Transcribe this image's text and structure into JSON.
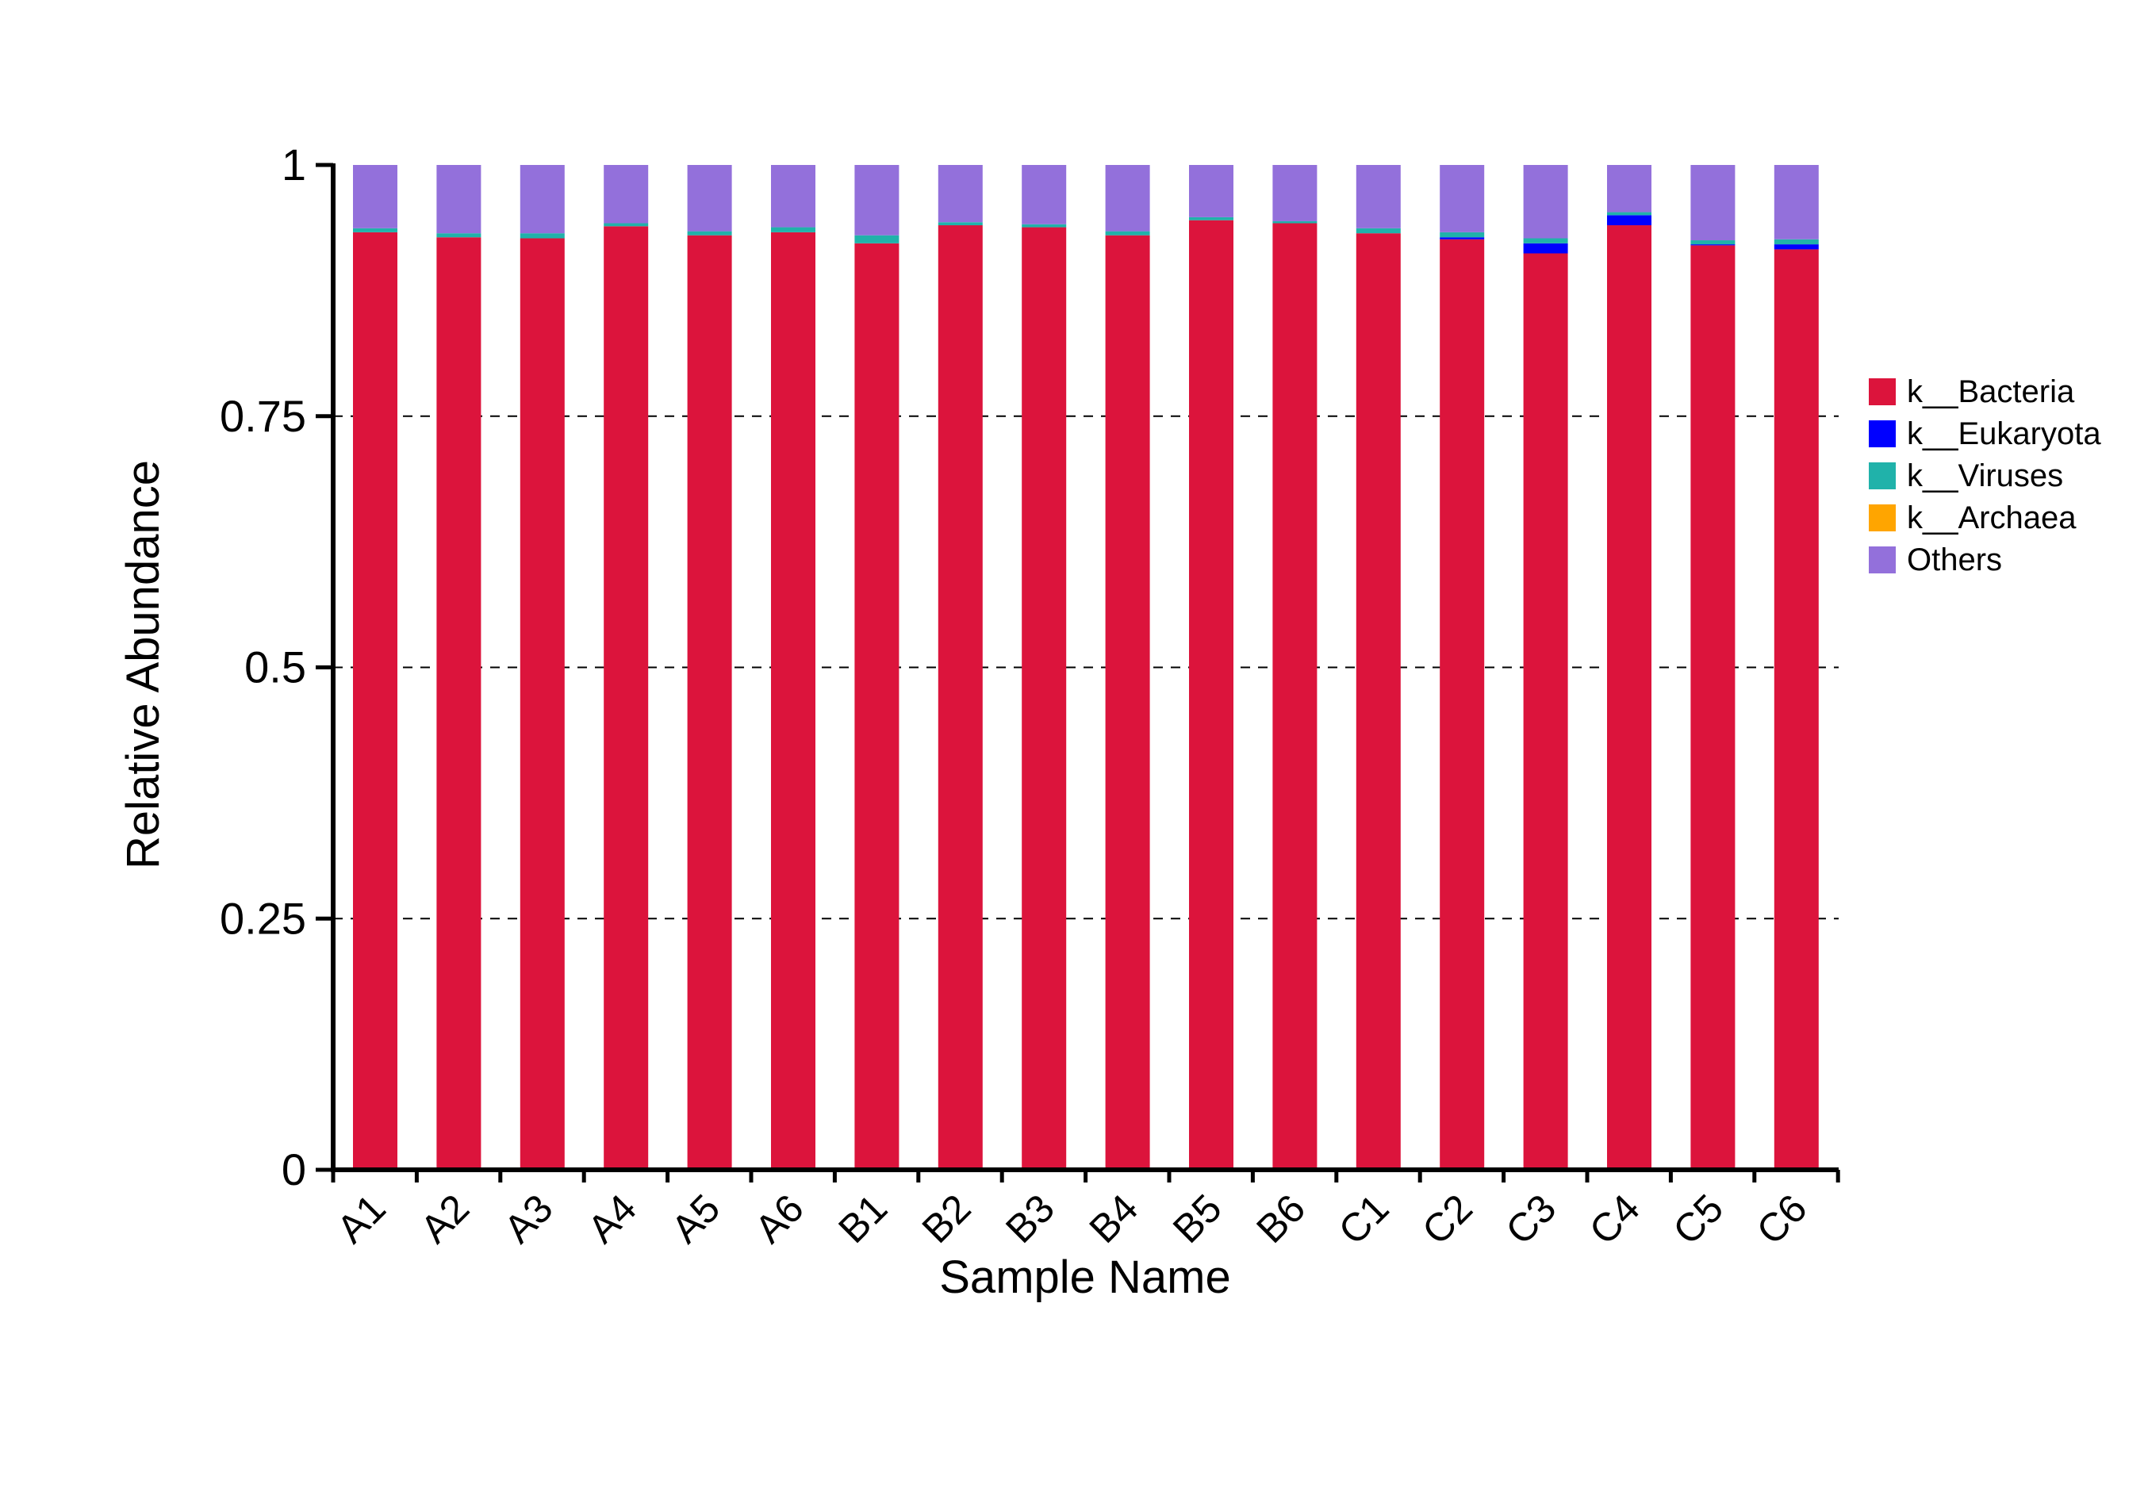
{
  "colors": {
    "k__Bacteria": "#DC143C",
    "k__Eukaryota": "#0000FF",
    "k__Viruses": "#20B2AA",
    "k__Archaea": "#FFA500",
    "Others": "#9370DB",
    "axis": "#000000",
    "grid": "#000000"
  },
  "chart_data": {
    "type": "bar",
    "stacked": true,
    "title": "",
    "xlabel": "Sample Name",
    "ylabel": "Relative Abundance",
    "ylim": [
      0,
      1
    ],
    "yticks": [
      0,
      0.25,
      0.5,
      0.75,
      1
    ],
    "ytick_labels": [
      "0",
      "0.25",
      "0.5",
      "0.75",
      "1"
    ],
    "grid": "horizontal dashed at 0.25, 0.5, 0.75",
    "legend_position": "right",
    "categories": [
      "A1",
      "A2",
      "A3",
      "A4",
      "A5",
      "A6",
      "B1",
      "B2",
      "B3",
      "B4",
      "B5",
      "B6",
      "C1",
      "C2",
      "C3",
      "C4",
      "C5",
      "C6"
    ],
    "series": [
      {
        "name": "k__Bacteria",
        "values": [
          0.933,
          0.928,
          0.927,
          0.939,
          0.93,
          0.933,
          0.922,
          0.94,
          0.938,
          0.93,
          0.945,
          0.942,
          0.932,
          0.926,
          0.912,
          0.94,
          0.92,
          0.916
        ]
      },
      {
        "name": "k__Eukaryota",
        "values": [
          0.0,
          0.0,
          0.0,
          0.0,
          0.0,
          0.0,
          0.0,
          0.0,
          0.0,
          0.0,
          0.0,
          0.0,
          0.0,
          0.002,
          0.01,
          0.01,
          0.001,
          0.005
        ]
      },
      {
        "name": "k__Viruses",
        "values": [
          0.004,
          0.004,
          0.005,
          0.003,
          0.004,
          0.005,
          0.008,
          0.003,
          0.003,
          0.004,
          0.003,
          0.002,
          0.005,
          0.005,
          0.005,
          0.003,
          0.004,
          0.005
        ]
      },
      {
        "name": "k__Archaea",
        "values": [
          0.0,
          0.0,
          0.0,
          0.0,
          0.0,
          0.0,
          0.0,
          0.0,
          0.0,
          0.0,
          0.0,
          0.0,
          0.0,
          0.0,
          0.0,
          0.0,
          0.0,
          0.0
        ]
      },
      {
        "name": "Others",
        "values": [
          0.063,
          0.068,
          0.068,
          0.058,
          0.066,
          0.062,
          0.07,
          0.057,
          0.059,
          0.066,
          0.052,
          0.056,
          0.063,
          0.067,
          0.073,
          0.047,
          0.075,
          0.074
        ]
      }
    ],
    "legend": {
      "entries": [
        "k__Bacteria",
        "k__Eukaryota",
        "k__Viruses",
        "k__Archaea",
        "Others"
      ]
    }
  }
}
